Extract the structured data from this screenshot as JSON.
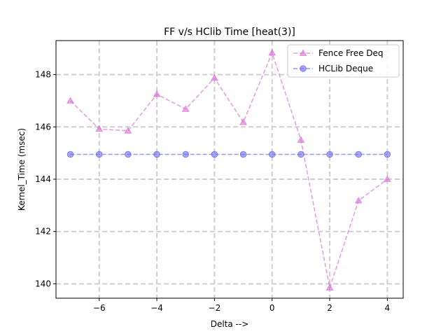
{
  "chart_data": {
    "type": "line",
    "title": "FF v/s HClib Time [heat(3)]",
    "xlabel": "Delta -->",
    "ylabel": "Kernel_Time (msec)",
    "xlim": [
      -7.5,
      4.55
    ],
    "ylim": [
      139.45,
      149.3
    ],
    "xticks": [
      -6,
      -4,
      -2,
      0,
      2,
      4
    ],
    "yticks": [
      140,
      142,
      144,
      146,
      148
    ],
    "grid": true,
    "legend_position": "upper right",
    "series": [
      {
        "name": "Fence Free Deq",
        "color": "#da70d6",
        "marker": "triangle",
        "linestyle": "dashed",
        "x": [
          -7,
          -6,
          -5,
          -4,
          -3,
          -2,
          -1,
          0,
          1,
          2,
          3,
          4
        ],
        "y": [
          147.0,
          145.92,
          145.85,
          147.25,
          146.68,
          147.87,
          146.18,
          148.83,
          145.5,
          139.85,
          143.18,
          144.0
        ]
      },
      {
        "name": "HCLib Deque",
        "color": "#6b6bef",
        "marker": "circle",
        "linestyle": "dashed",
        "x": [
          -7,
          -6,
          -5,
          -4,
          -3,
          -2,
          -1,
          0,
          1,
          2,
          3,
          4
        ],
        "y": [
          144.95,
          144.95,
          144.95,
          144.95,
          144.95,
          144.95,
          144.95,
          144.95,
          144.95,
          144.95,
          144.95,
          144.95
        ]
      }
    ]
  }
}
